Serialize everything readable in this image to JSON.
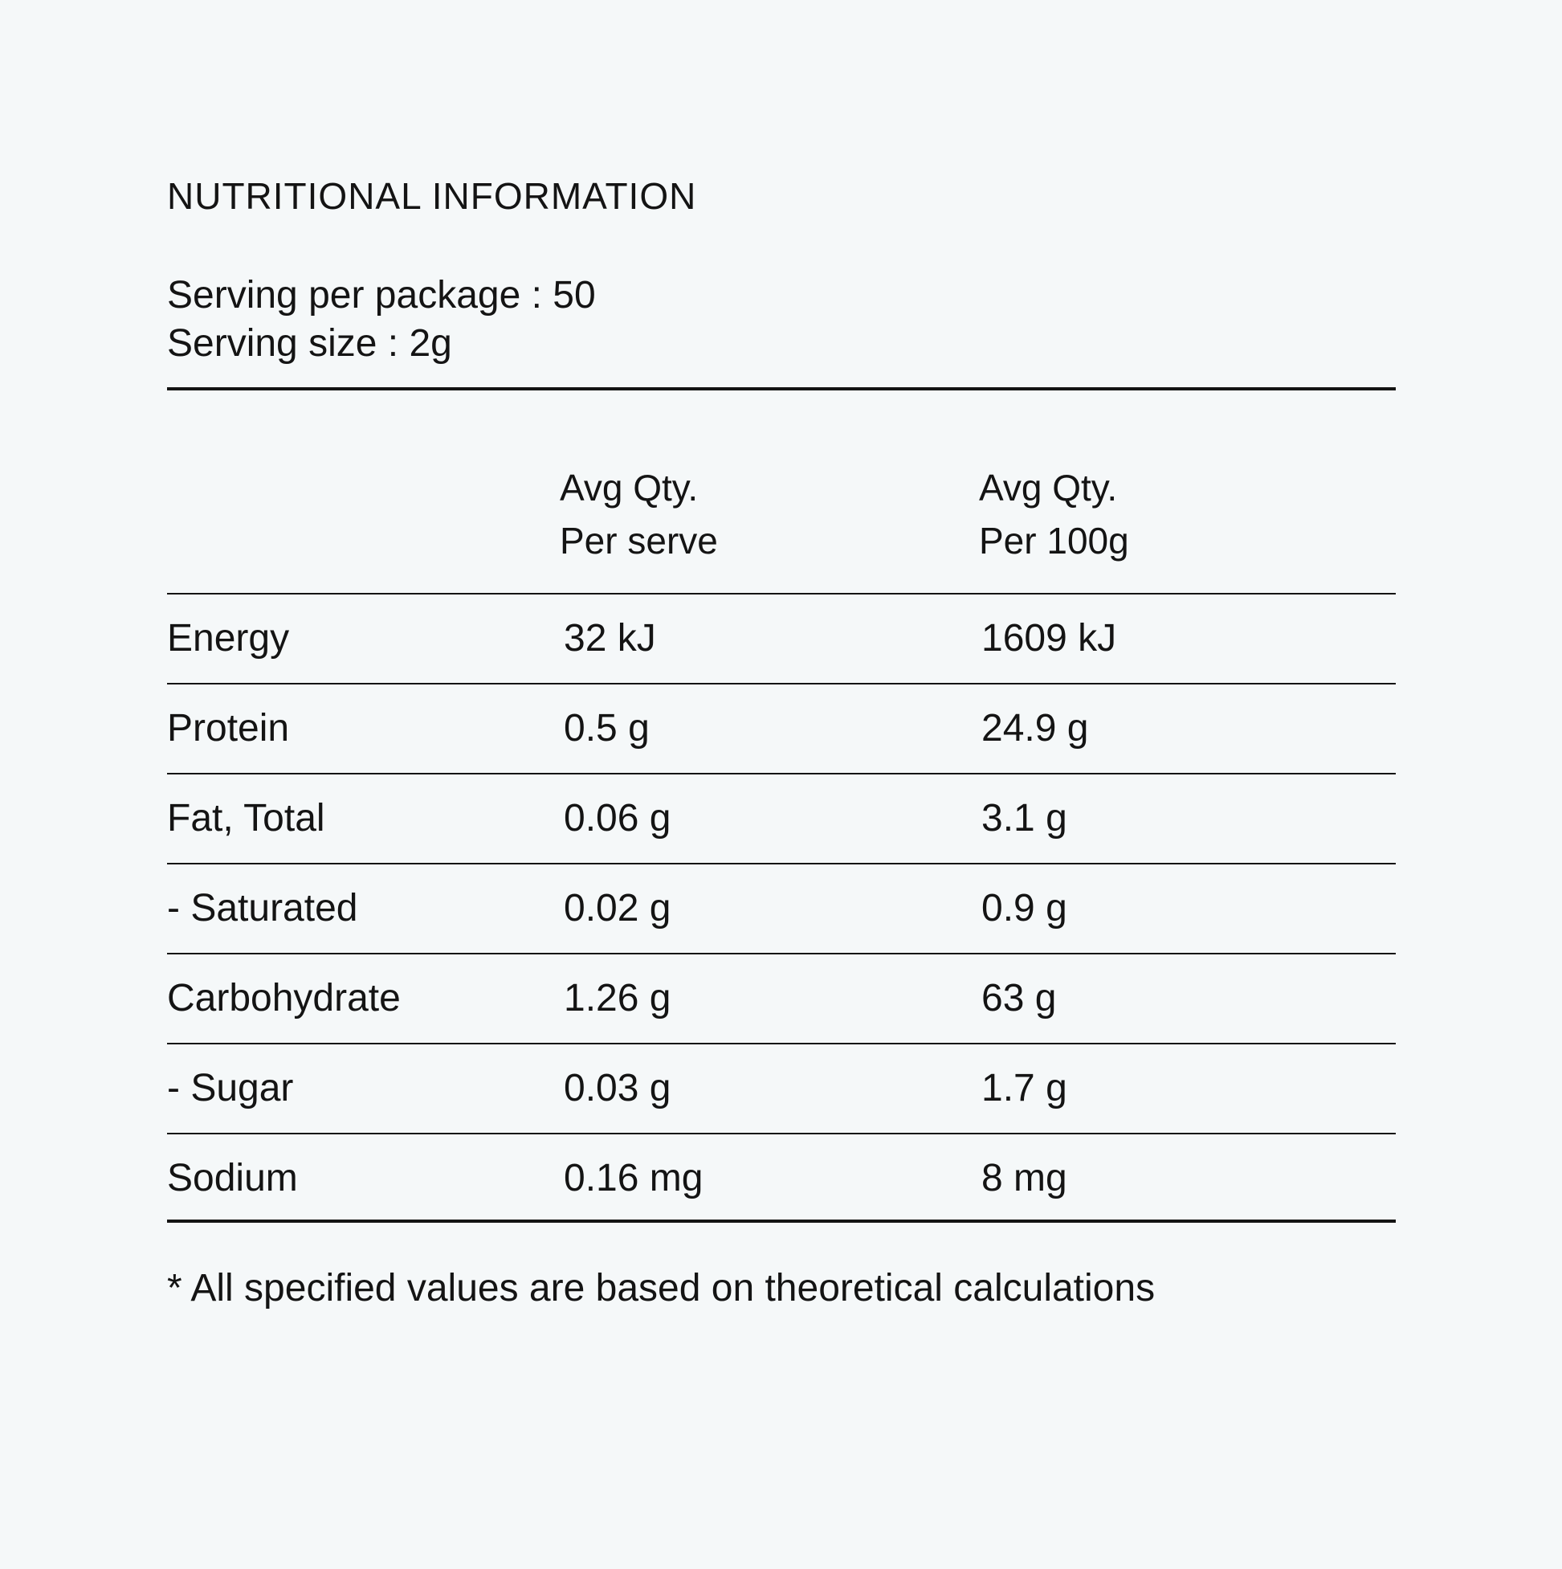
{
  "panel": {
    "title": "NUTRITIONAL INFORMATION",
    "serving_per_package": "Serving per package : 50",
    "serving_size": "Serving size : 2g"
  },
  "table": {
    "headers": [
      {
        "line1": "",
        "line2": ""
      },
      {
        "line1": "Avg Qty.",
        "line2": "Per serve"
      },
      {
        "line1": "Avg Qty.",
        "line2": "Per 100g"
      }
    ],
    "rows": [
      {
        "nutrient": "Energy",
        "per_serve": "32 kJ",
        "per_100g": "1609 kJ"
      },
      {
        "nutrient": "Protein",
        "per_serve": "0.5 g",
        "per_100g": "24.9 g"
      },
      {
        "nutrient": "Fat, Total",
        "per_serve": "0.06 g",
        "per_100g": "3.1 g"
      },
      {
        "nutrient": "- Saturated",
        "per_serve": "0.02 g",
        "per_100g": "0.9 g"
      },
      {
        "nutrient": "Carbohydrate",
        "per_serve": "1.26 g",
        "per_100g": "63 g"
      },
      {
        "nutrient": "- Sugar",
        "per_serve": "0.03 g",
        "per_100g": "1.7 g"
      },
      {
        "nutrient": "Sodium",
        "per_serve": "0.16 mg",
        "per_100g": "8 mg"
      }
    ]
  },
  "footnote": "* All specified values are based on theoretical calculations",
  "colors": {
    "background": "#f5f8f9",
    "text": "#141414",
    "rule": "#141414"
  }
}
